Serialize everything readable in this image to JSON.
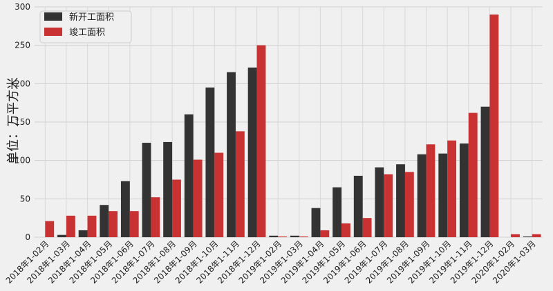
{
  "chart_data": {
    "type": "bar",
    "ylabel": "单位：万平方米",
    "ylim": [
      0,
      300
    ],
    "yticks": [
      0,
      50,
      100,
      150,
      200,
      250,
      300
    ],
    "grid": true,
    "legend_position": "top-left",
    "categories": [
      "2018年1-02月",
      "2018年1-03月",
      "2018年1-04月",
      "2018年1-05月",
      "2018年1-06月",
      "2018年1-07月",
      "2018年1-08月",
      "2018年1-09月",
      "2018年1-10月",
      "2018年1-11月",
      "2018年1-12月",
      "2019年1-02月",
      "2019年1-03月",
      "2019年1-04月",
      "2019年1-05月",
      "2019年1-06月",
      "2019年1-07月",
      "2019年1-08月",
      "2019年1-09月",
      "2019年1-10月",
      "2019年1-11月",
      "2019年1-12月",
      "2020年1-02月",
      "2020年1-03月"
    ],
    "series": [
      {
        "name": "新开工面积",
        "color": "#333333",
        "values": [
          0,
          3,
          9,
          42,
          73,
          123,
          124,
          160,
          195,
          215,
          221,
          2,
          2,
          38,
          65,
          80,
          91,
          95,
          108,
          109,
          122,
          170,
          0,
          1
        ]
      },
      {
        "name": "竣工面积",
        "color": "#c83232",
        "values": [
          21,
          28,
          28,
          34,
          34,
          52,
          75,
          101,
          110,
          138,
          250,
          1,
          1,
          9,
          18,
          25,
          82,
          85,
          121,
          126,
          162,
          290,
          4,
          4
        ]
      }
    ]
  }
}
